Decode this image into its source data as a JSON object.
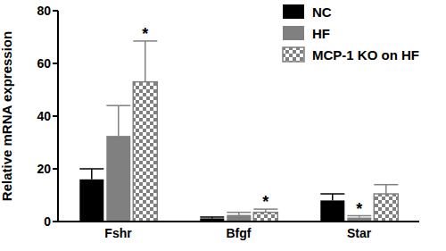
{
  "chart_data": {
    "type": "bar",
    "y_label": "Relative mRNA expression",
    "categories": [
      "Fshr",
      "Bfgf",
      "Star"
    ],
    "series": [
      {
        "name": "NC",
        "color": "#000000",
        "values": [
          16,
          1.2,
          8
        ],
        "errors": [
          4,
          0.5,
          2.5
        ]
      },
      {
        "name": "HF",
        "color": "#808080",
        "values": [
          32.5,
          2.5,
          1.5
        ],
        "errors": [
          11.5,
          1,
          0.7
        ]
      },
      {
        "name": "MCP-1 KO on HF",
        "color": "#808080",
        "values": [
          53,
          3.5,
          10.5
        ],
        "errors": [
          15.5,
          1.2,
          3.5
        ]
      }
    ],
    "ylim": [
      0,
      80
    ],
    "yticks": [
      0,
      20,
      40,
      60,
      80
    ],
    "legend": "top-right",
    "annotations": [
      {
        "series": "MCP-1 KO on HF",
        "category": "Fshr",
        "text": "*"
      },
      {
        "series": "MCP-1 KO on HF",
        "category": "Bfgf",
        "text": "*"
      },
      {
        "series": "HF",
        "category": "Star",
        "text": "*"
      }
    ]
  }
}
